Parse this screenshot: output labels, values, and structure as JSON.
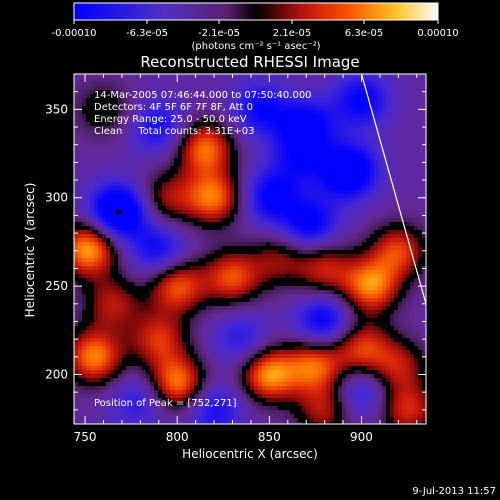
{
  "colorbar": {
    "ticks": [
      "-0.00010",
      "-6.3e-05",
      "-2.1e-05",
      "2.1e-05",
      "6.3e-05",
      "0.00010"
    ],
    "unit_label": "(photons cm⁻² s⁻¹ asec⁻²)",
    "colors": [
      "#0000ff",
      "#4a28c8",
      "#7a3aa0",
      "#000000",
      "#a01010",
      "#e03010",
      "#ff8000",
      "#ffd030",
      "#ffffff"
    ]
  },
  "info": {
    "line1": "14-Mar-2005 07:46:44.000 to 07:50:40.000",
    "line2": "Detectors: 4F 5F 6F 7F 8F, Att 0",
    "line3": "Energy Range: 25.0 - 50.0 keV",
    "line4": "Clean     Total counts: 3.31E+03",
    "peak": "Position of Peak = [752,271]"
  },
  "footer": {
    "date": "9-Jul-2013 11:57"
  },
  "chart_data": {
    "type": "heatmap",
    "title": "Reconstructed RHESSI Image",
    "xlabel": "Heliocentric X (arcsec)",
    "ylabel": "Heliocentric Y (arcsec)",
    "xlim": [
      744,
      935
    ],
    "ylim": [
      172,
      370
    ],
    "xticks": [
      750,
      800,
      850,
      900
    ],
    "yticks": [
      200,
      250,
      300,
      350
    ],
    "colorbar_range": [
      -0.0001,
      0.0001
    ],
    "peak_position": [
      752,
      271
    ],
    "limb_line": [
      [
        900,
        370
      ],
      [
        935,
        240
      ]
    ],
    "features": [
      {
        "x": 768,
        "y": 292,
        "level": -1.0
      },
      {
        "x": 760,
        "y": 350,
        "level": 0.4
      },
      {
        "x": 752,
        "y": 271,
        "level": 1.0
      },
      {
        "x": 790,
        "y": 340,
        "level": -0.5
      },
      {
        "x": 815,
        "y": 328,
        "level": 0.85
      },
      {
        "x": 795,
        "y": 300,
        "level": 0.5
      },
      {
        "x": 820,
        "y": 300,
        "level": 0.85
      },
      {
        "x": 790,
        "y": 270,
        "level": -0.55
      },
      {
        "x": 800,
        "y": 250,
        "level": 0.8
      },
      {
        "x": 830,
        "y": 255,
        "level": 0.75
      },
      {
        "x": 765,
        "y": 240,
        "level": 0.55
      },
      {
        "x": 755,
        "y": 210,
        "level": 0.9
      },
      {
        "x": 790,
        "y": 220,
        "level": 0.65
      },
      {
        "x": 800,
        "y": 195,
        "level": 0.9
      },
      {
        "x": 780,
        "y": 185,
        "level": -0.4
      },
      {
        "x": 835,
        "y": 220,
        "level": -0.4
      },
      {
        "x": 850,
        "y": 200,
        "level": 0.95
      },
      {
        "x": 820,
        "y": 180,
        "level": -0.5
      },
      {
        "x": 845,
        "y": 350,
        "level": -0.55
      },
      {
        "x": 870,
        "y": 340,
        "level": -0.7
      },
      {
        "x": 893,
        "y": 315,
        "level": -0.9
      },
      {
        "x": 900,
        "y": 355,
        "level": -0.6
      },
      {
        "x": 850,
        "y": 300,
        "level": -0.6
      },
      {
        "x": 872,
        "y": 285,
        "level": -0.65
      },
      {
        "x": 855,
        "y": 265,
        "level": 0.45
      },
      {
        "x": 880,
        "y": 260,
        "level": 0.6
      },
      {
        "x": 905,
        "y": 250,
        "level": 0.9
      },
      {
        "x": 920,
        "y": 270,
        "level": 0.7
      },
      {
        "x": 880,
        "y": 230,
        "level": -0.65
      },
      {
        "x": 900,
        "y": 215,
        "level": 0.7
      },
      {
        "x": 875,
        "y": 205,
        "level": 0.8
      },
      {
        "x": 900,
        "y": 190,
        "level": -0.45
      },
      {
        "x": 920,
        "y": 205,
        "level": 0.55
      },
      {
        "x": 880,
        "y": 180,
        "level": 0.55
      },
      {
        "x": 925,
        "y": 180,
        "level": 0.65
      },
      {
        "x": 865,
        "y": 320,
        "level": -0.4
      }
    ]
  }
}
